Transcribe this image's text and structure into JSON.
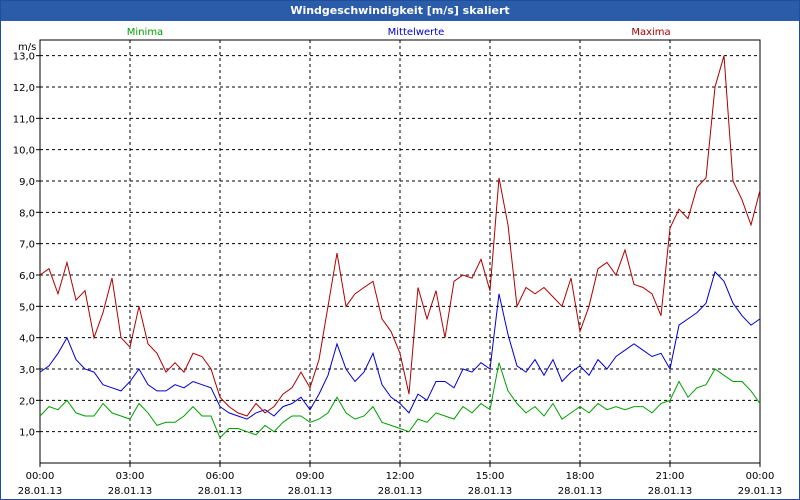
{
  "window": {
    "title": "Windgeschwindigkeit [m/s] skaliert"
  },
  "chart_data": {
    "type": "line",
    "title": "Windgeschwindigkeit [m/s] skaliert",
    "ylabel": "m/s",
    "ylim": [
      0,
      13.5
    ],
    "y_ticks": [
      "1,0",
      "2,0",
      "3,0",
      "4,0",
      "5,0",
      "6,0",
      "7,0",
      "8,0",
      "9,0",
      "10,0",
      "11,0",
      "12,0",
      "13,0"
    ],
    "x_range_hours": [
      0,
      24
    ],
    "x_ticks": [
      {
        "time": "00:00",
        "date": "28.01.13"
      },
      {
        "time": "03:00",
        "date": "28.01.13"
      },
      {
        "time": "06:00",
        "date": "28.01.13"
      },
      {
        "time": "09:00",
        "date": "28.01.13"
      },
      {
        "time": "12:00",
        "date": "28.01.13"
      },
      {
        "time": "15:00",
        "date": "28.01.13"
      },
      {
        "time": "18:00",
        "date": "28.01.13"
      },
      {
        "time": "21:00",
        "date": "28.01.13"
      },
      {
        "time": "00:00",
        "date": "29.01.13"
      }
    ],
    "legend": [
      "Minima",
      "Mittelwerte",
      "Maxima"
    ],
    "series": [
      {
        "name": "Minima",
        "color": "#00a000",
        "x": [
          0,
          0.3,
          0.6,
          0.9,
          1.2,
          1.5,
          1.8,
          2.1,
          2.4,
          2.7,
          3.0,
          3.3,
          3.6,
          3.9,
          4.2,
          4.5,
          4.8,
          5.1,
          5.4,
          5.7,
          6.0,
          6.3,
          6.6,
          6.9,
          7.2,
          7.5,
          7.8,
          8.1,
          8.4,
          8.7,
          9.0,
          9.3,
          9.6,
          9.9,
          10.2,
          10.5,
          10.8,
          11.1,
          11.4,
          11.7,
          12.0,
          12.3,
          12.6,
          12.9,
          13.2,
          13.5,
          13.8,
          14.1,
          14.4,
          14.7,
          15.0,
          15.3,
          15.6,
          15.9,
          16.2,
          16.5,
          16.8,
          17.1,
          17.4,
          17.7,
          18.0,
          18.3,
          18.6,
          18.9,
          19.2,
          19.5,
          19.8,
          20.1,
          20.4,
          20.7,
          21.0,
          21.3,
          21.6,
          21.9,
          22.2,
          22.5,
          22.8,
          23.1,
          23.4,
          23.7,
          24.0
        ],
        "values": [
          1.5,
          1.8,
          1.7,
          2.0,
          1.6,
          1.5,
          1.5,
          1.9,
          1.6,
          1.5,
          1.4,
          1.9,
          1.6,
          1.2,
          1.3,
          1.3,
          1.5,
          1.8,
          1.5,
          1.5,
          0.8,
          1.1,
          1.1,
          1.0,
          0.9,
          1.2,
          1.0,
          1.3,
          1.5,
          1.5,
          1.3,
          1.4,
          1.6,
          2.1,
          1.6,
          1.4,
          1.5,
          1.8,
          1.3,
          1.2,
          1.1,
          1.0,
          1.4,
          1.3,
          1.6,
          1.5,
          1.4,
          1.8,
          1.6,
          1.9,
          1.7,
          3.2,
          2.3,
          1.9,
          1.6,
          1.8,
          1.5,
          1.9,
          1.4,
          1.6,
          1.8,
          1.6,
          1.9,
          1.7,
          1.8,
          1.7,
          1.8,
          1.8,
          1.6,
          1.9,
          2.0,
          2.6,
          2.1,
          2.4,
          2.5,
          3.0,
          2.8,
          2.6,
          2.6,
          2.3,
          1.9
        ]
      },
      {
        "name": "Mittelwerte",
        "color": "#0000cc",
        "x": [
          0,
          0.3,
          0.6,
          0.9,
          1.2,
          1.5,
          1.8,
          2.1,
          2.4,
          2.7,
          3.0,
          3.3,
          3.6,
          3.9,
          4.2,
          4.5,
          4.8,
          5.1,
          5.4,
          5.7,
          6.0,
          6.3,
          6.6,
          6.9,
          7.2,
          7.5,
          7.8,
          8.1,
          8.4,
          8.7,
          9.0,
          9.3,
          9.6,
          9.9,
          10.2,
          10.5,
          10.8,
          11.1,
          11.4,
          11.7,
          12.0,
          12.3,
          12.6,
          12.9,
          13.2,
          13.5,
          13.8,
          14.1,
          14.4,
          14.7,
          15.0,
          15.3,
          15.6,
          15.9,
          16.2,
          16.5,
          16.8,
          17.1,
          17.4,
          17.7,
          18.0,
          18.3,
          18.6,
          18.9,
          19.2,
          19.5,
          19.8,
          20.1,
          20.4,
          20.7,
          21.0,
          21.3,
          21.6,
          21.9,
          22.2,
          22.5,
          22.8,
          23.1,
          23.4,
          23.7,
          24.0
        ],
        "values": [
          2.9,
          3.1,
          3.5,
          4.0,
          3.3,
          3.0,
          2.9,
          2.5,
          2.4,
          2.3,
          2.6,
          3.0,
          2.5,
          2.3,
          2.3,
          2.5,
          2.4,
          2.6,
          2.5,
          2.4,
          1.8,
          1.6,
          1.5,
          1.4,
          1.6,
          1.7,
          1.5,
          1.8,
          1.9,
          2.1,
          1.7,
          2.2,
          2.8,
          3.8,
          3.0,
          2.6,
          2.9,
          3.5,
          2.5,
          2.1,
          1.9,
          1.6,
          2.2,
          2.0,
          2.6,
          2.6,
          2.4,
          3.0,
          2.9,
          3.2,
          3.0,
          5.4,
          4.1,
          3.1,
          2.9,
          3.3,
          2.8,
          3.3,
          2.6,
          2.9,
          3.1,
          2.8,
          3.3,
          3.0,
          3.4,
          3.6,
          3.8,
          3.6,
          3.4,
          3.5,
          3.0,
          4.4,
          4.6,
          4.8,
          5.1,
          6.1,
          5.8,
          5.1,
          4.7,
          4.4,
          4.6
        ]
      },
      {
        "name": "Maxima",
        "color": "#b00000",
        "x": [
          0,
          0.3,
          0.6,
          0.9,
          1.2,
          1.5,
          1.8,
          2.1,
          2.4,
          2.7,
          3.0,
          3.3,
          3.6,
          3.9,
          4.2,
          4.5,
          4.8,
          5.1,
          5.4,
          5.7,
          6.0,
          6.3,
          6.6,
          6.9,
          7.2,
          7.5,
          7.8,
          8.1,
          8.4,
          8.7,
          9.0,
          9.3,
          9.6,
          9.9,
          10.2,
          10.5,
          10.8,
          11.1,
          11.4,
          11.7,
          12.0,
          12.3,
          12.6,
          12.9,
          13.2,
          13.5,
          13.8,
          14.1,
          14.4,
          14.7,
          15.0,
          15.3,
          15.6,
          15.9,
          16.2,
          16.5,
          16.8,
          17.1,
          17.4,
          17.7,
          18.0,
          18.3,
          18.6,
          18.9,
          19.2,
          19.5,
          19.8,
          20.1,
          20.4,
          20.7,
          21.0,
          21.3,
          21.6,
          21.9,
          22.2,
          22.5,
          22.8,
          23.1,
          23.4,
          23.7,
          24.0
        ],
        "values": [
          6.0,
          6.2,
          5.4,
          6.4,
          5.2,
          5.5,
          4.0,
          4.8,
          5.9,
          4.0,
          3.7,
          5.0,
          3.8,
          3.5,
          2.9,
          3.2,
          2.9,
          3.5,
          3.4,
          3.0,
          2.1,
          1.8,
          1.6,
          1.5,
          1.9,
          1.6,
          1.8,
          2.2,
          2.4,
          2.9,
          2.4,
          3.3,
          5.0,
          6.7,
          5.0,
          5.4,
          5.6,
          5.8,
          4.6,
          4.2,
          3.5,
          2.2,
          5.6,
          4.6,
          5.5,
          4.0,
          5.8,
          6.0,
          5.9,
          6.5,
          5.5,
          9.1,
          7.6,
          5.0,
          5.6,
          5.4,
          5.6,
          5.3,
          5.0,
          5.9,
          4.2,
          5.0,
          6.2,
          6.4,
          6.0,
          6.8,
          5.7,
          5.6,
          5.4,
          4.7,
          7.5,
          8.1,
          7.8,
          8.8,
          9.1,
          12.0,
          13.0,
          9.0,
          8.4,
          7.6,
          8.7
        ]
      }
    ]
  }
}
